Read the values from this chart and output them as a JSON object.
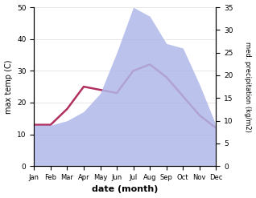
{
  "months": [
    "Jan",
    "Feb",
    "Mar",
    "Apr",
    "May",
    "Jun",
    "Jul",
    "Aug",
    "Sep",
    "Oct",
    "Nov",
    "Dec"
  ],
  "temp": [
    13,
    13,
    18,
    25,
    24,
    23,
    30,
    32,
    28,
    22,
    16,
    12
  ],
  "precip": [
    9,
    9,
    10,
    12,
    16,
    25,
    35,
    33,
    27,
    26,
    18,
    9
  ],
  "temp_color": "#b03060",
  "precip_fill_color": "#b0b8e8",
  "ylabel_left": "max temp (C)",
  "ylabel_right": "med. precipitation (kg/m2)",
  "xlabel": "date (month)",
  "ylim_left": [
    0,
    50
  ],
  "ylim_right": [
    0,
    35
  ],
  "yticks_left": [
    0,
    10,
    20,
    30,
    40,
    50
  ],
  "yticks_right": [
    0,
    5,
    10,
    15,
    20,
    25,
    30,
    35
  ]
}
